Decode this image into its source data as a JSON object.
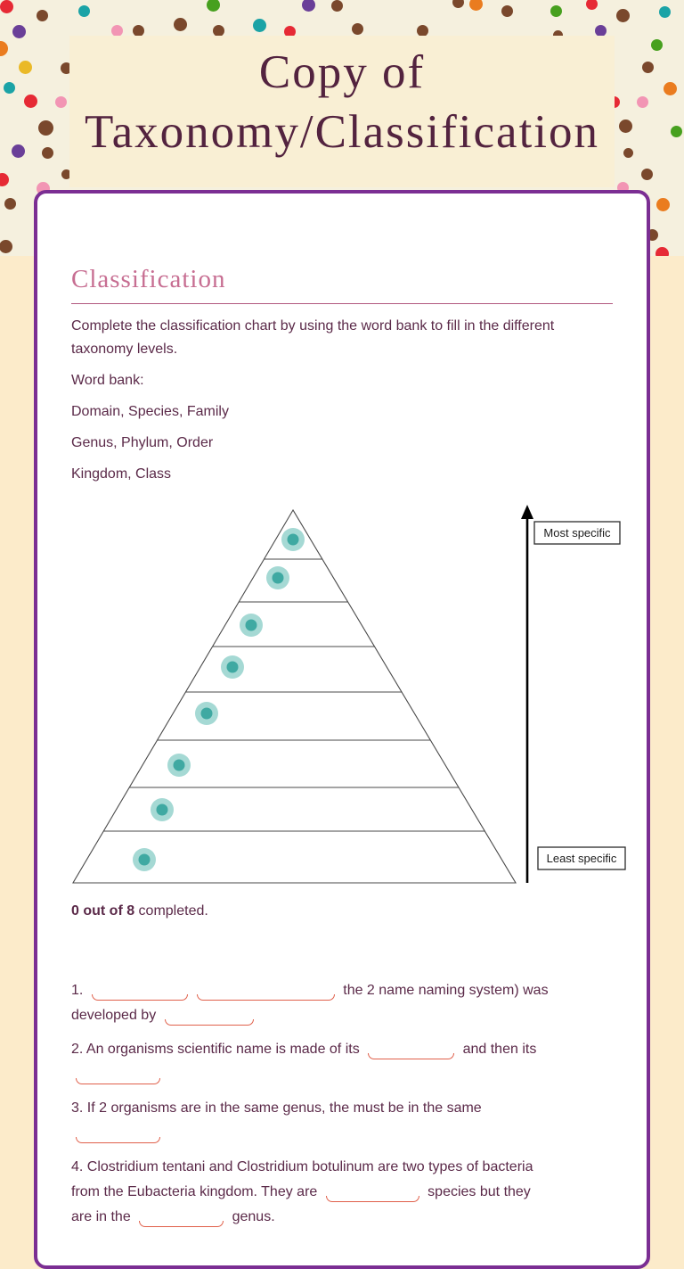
{
  "page": {
    "title": "Copy of Taxonomy/Classification"
  },
  "worksheet": {
    "section_heading": "Classification",
    "instructions": "Complete the classification chart by using the word bank to fill in the different taxonomy levels.",
    "word_bank_label": "Word bank:",
    "word_bank_rows": [
      "Domain, Species, Family",
      "Genus, Phylum, Order",
      "Kingdom, Class"
    ],
    "pyramid": {
      "levels": 8,
      "drag_dots": 8,
      "most_specific_label": "Most specific",
      "least_specific_label": "Least specific"
    },
    "progress": {
      "completed_bold": "0 out of 8",
      "completed_rest": " completed."
    },
    "questions": [
      {
        "segments": [
          {
            "text": "1. "
          },
          {
            "blank": 108
          },
          {
            "blank": 155
          },
          {
            "text": " the 2 name naming system) was"
          },
          {
            "br": true
          },
          {
            "text": "developed by "
          },
          {
            "blank": 100
          }
        ]
      },
      {
        "segments": [
          {
            "text": "2. An organisms scientific name is made of its "
          },
          {
            "blank": 97
          },
          {
            "text": " and then its"
          },
          {
            "br": true
          },
          {
            "blank": 95
          }
        ]
      },
      {
        "segments": [
          {
            "text": "3. If 2 organisms are in the same genus, the must be in the same"
          },
          {
            "br": true
          },
          {
            "blank": 95
          }
        ]
      },
      {
        "segments": [
          {
            "text": "4. Clostridium tentani and Clostridium botulinum are two types of bacteria"
          },
          {
            "br": true
          },
          {
            "text": "from the Eubacteria kingdom. They are "
          },
          {
            "blank": 105
          },
          {
            "text": " species but they"
          },
          {
            "br": true
          },
          {
            "text": "are in the "
          },
          {
            "blank": 95
          },
          {
            "text": " genus."
          }
        ]
      }
    ]
  },
  "background": {
    "dot_colors": [
      "#e62a35",
      "#7a482c",
      "#6a3f98",
      "#ea7c1f",
      "#eab927",
      "#1ba3a6",
      "#f295b4",
      "#47a01e"
    ]
  },
  "colors": {
    "purple": "#7b2e93",
    "plum": "#5b2a49",
    "pink": "#c76e92",
    "coral": "#e0604b",
    "teal-outer": "#a5d9d4",
    "teal-inner": "#3fa9a2",
    "banner": "#f9efd4",
    "peach": "#fcebca",
    "dots-bg": "#f5f0de",
    "title": "#53233f"
  }
}
